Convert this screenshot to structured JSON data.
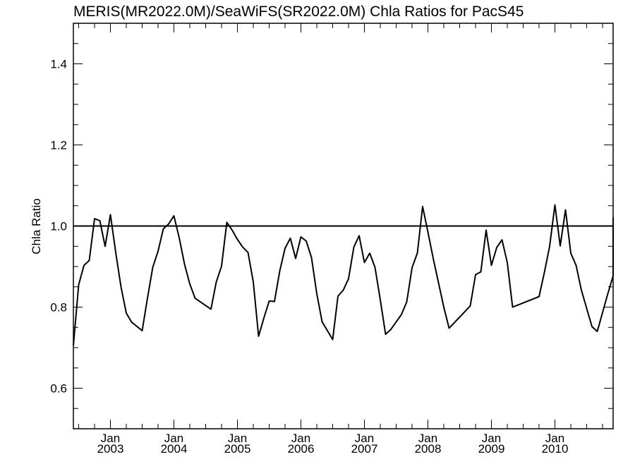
{
  "chart_data": {
    "type": "line",
    "title": "MERIS(MR2022.0M)/SeaWiFS(SR2022.0M)  Chla Ratios for PacS45",
    "xlabel": "",
    "ylabel": "Chla Ratio",
    "ylim": [
      0.5,
      1.5
    ],
    "xlim": [
      "2002-06",
      "2010-12"
    ],
    "yticks": [
      {
        "value": 0.6,
        "label": "0.6"
      },
      {
        "value": 0.8,
        "label": "0.8"
      },
      {
        "value": 1.0,
        "label": "1.0"
      },
      {
        "value": 1.2,
        "label": "1.2"
      },
      {
        "value": 1.4,
        "label": "1.4"
      }
    ],
    "xticks": [
      {
        "date": "2003-01",
        "month": "Jan",
        "year": "2003"
      },
      {
        "date": "2004-01",
        "month": "Jan",
        "year": "2004"
      },
      {
        "date": "2005-01",
        "month": "Jan",
        "year": "2005"
      },
      {
        "date": "2006-01",
        "month": "Jan",
        "year": "2006"
      },
      {
        "date": "2007-01",
        "month": "Jan",
        "year": "2007"
      },
      {
        "date": "2008-01",
        "month": "Jan",
        "year": "2008"
      },
      {
        "date": "2009-01",
        "month": "Jan",
        "year": "2009"
      },
      {
        "date": "2010-01",
        "month": "Jan",
        "year": "2010"
      }
    ],
    "reference_line": {
      "y": 1.0
    },
    "grid": false,
    "series": [
      {
        "x": [
          "2002-06",
          "2002-07",
          "2002-08",
          "2002-09",
          "2002-10",
          "2002-11",
          "2002-12",
          "2003-01",
          "2003-02",
          "2003-03",
          "2003-04",
          "2003-05",
          "2003-07",
          "2003-08",
          "2003-09",
          "2003-10",
          "2003-11",
          "2003-12",
          "2004-01",
          "2004-02",
          "2004-03",
          "2004-04",
          "2004-05",
          "2004-08",
          "2004-09",
          "2004-10",
          "2004-11",
          "2004-12",
          "2005-01",
          "2005-02",
          "2005-03",
          "2005-04",
          "2005-05",
          "2005-06",
          "2005-07",
          "2005-08",
          "2005-09",
          "2005-10",
          "2005-11",
          "2005-12",
          "2006-01",
          "2006-02",
          "2006-03",
          "2006-04",
          "2006-05",
          "2006-07",
          "2006-08",
          "2006-09",
          "2006-10",
          "2006-11",
          "2006-12",
          "2007-01",
          "2007-02",
          "2007-03",
          "2007-04",
          "2007-05",
          "2007-06",
          "2007-08",
          "2007-09",
          "2007-10",
          "2007-11",
          "2007-12",
          "2008-01",
          "2008-02",
          "2008-03",
          "2008-04",
          "2008-05",
          "2008-09",
          "2008-10",
          "2008-11",
          "2008-12",
          "2009-01",
          "2009-02",
          "2009-03",
          "2009-04",
          "2009-05",
          "2009-06",
          "2009-10",
          "2009-11",
          "2009-12",
          "2010-01",
          "2010-02",
          "2010-03",
          "2010-04",
          "2010-05",
          "2010-06",
          "2010-08",
          "2010-09",
          "2010-11",
          "2010-12",
          "2010-12"
        ],
        "values": [
          0.705,
          0.855,
          0.903,
          0.915,
          1.018,
          1.013,
          0.95,
          1.028,
          0.935,
          0.85,
          0.785,
          0.763,
          0.742,
          0.822,
          0.898,
          0.938,
          0.993,
          1.005,
          1.025,
          0.971,
          0.906,
          0.857,
          0.822,
          0.795,
          0.862,
          0.901,
          1.009,
          0.99,
          0.967,
          0.948,
          0.935,
          0.862,
          0.728,
          0.773,
          0.815,
          0.814,
          0.889,
          0.945,
          0.97,
          0.92,
          0.973,
          0.963,
          0.922,
          0.833,
          0.764,
          0.72,
          0.827,
          0.842,
          0.87,
          0.948,
          0.976,
          0.91,
          0.933,
          0.898,
          0.818,
          0.733,
          0.745,
          0.782,
          0.813,
          0.897,
          0.933,
          1.048,
          0.985,
          0.92,
          0.86,
          0.8,
          0.748,
          0.803,
          0.88,
          0.887,
          0.99,
          0.903,
          0.947,
          0.966,
          0.91,
          0.8,
          0.805,
          0.826,
          0.885,
          0.95,
          1.052,
          0.951,
          1.04,
          0.933,
          0.903,
          0.842,
          0.752,
          0.74,
          0.833,
          0.877,
          1.021
        ]
      }
    ]
  }
}
